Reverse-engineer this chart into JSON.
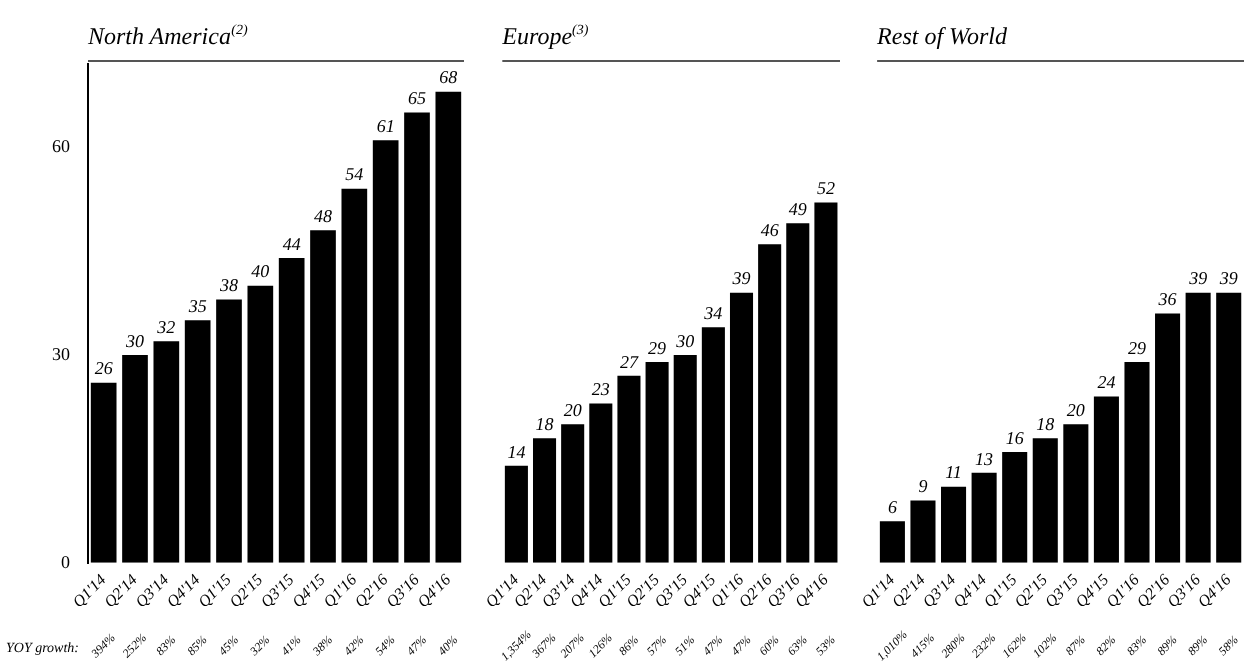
{
  "chart_data": [
    {
      "type": "bar",
      "title": "North America$^{(2)}$",
      "categories": [
        "Q1'14",
        "Q2'14",
        "Q3'14",
        "Q4'14",
        "Q1'15",
        "Q2'15",
        "Q3'15",
        "Q4'15",
        "Q1'16",
        "Q2'16",
        "Q3'16",
        "Q4'16"
      ],
      "values": [
        26,
        30,
        32,
        35,
        38,
        40,
        44,
        48,
        54,
        61,
        65,
        68
      ],
      "color": "#000000",
      "ylim": [
        0,
        72
      ],
      "yticks": [
        0,
        30,
        60
      ],
      "grid": false,
      "data_labels": true,
      "annotations": [
        "YOY growth:",
        "394%",
        "252%",
        "83%",
        "85%",
        "45%",
        "32%",
        "41%",
        "38%",
        "42%",
        "54%",
        "47%",
        "40%"
      ]
    },
    {
      "type": "bar",
      "title": "Europe$^{(3)}$",
      "categories": [
        "Q1'14",
        "Q2'14",
        "Q3'14",
        "Q4'14",
        "Q1'15",
        "Q2'15",
        "Q3'15",
        "Q4'15",
        "Q1'16",
        "Q2'16",
        "Q3'16",
        "Q4'16"
      ],
      "values": [
        14,
        18,
        20,
        23,
        27,
        29,
        30,
        34,
        39,
        46,
        49,
        52
      ],
      "color": "#000000",
      "ylim": [
        0,
        72
      ],
      "grid": false,
      "data_labels": true,
      "tick_labels": "x",
      "annotations": [
        "1,354%",
        "367%",
        "207%",
        "126%",
        "86%",
        "57%",
        "51%",
        "47%",
        "47%",
        "60%",
        "63%",
        "53%"
      ]
    },
    {
      "type": "bar",
      "title": "Rest of World",
      "categories": [
        "Q1'14",
        "Q2'14",
        "Q3'14",
        "Q4'14",
        "Q1'15",
        "Q2'15",
        "Q3'15",
        "Q4'15",
        "Q1'16",
        "Q2'16",
        "Q3'16",
        "Q4'16"
      ],
      "values": [
        6,
        9,
        11,
        13,
        16,
        18,
        20,
        24,
        29,
        36,
        39,
        39
      ],
      "color": "#000000",
      "ylim": [
        0,
        72
      ],
      "grid": false,
      "data_labels": true,
      "tick_labels": "x",
      "annotations": [
        "1,010%",
        "415%",
        "280%",
        "232%",
        "162%",
        "102%",
        "87%",
        "82%",
        "83%",
        "89%",
        "89%",
        "58%"
      ]
    }
  ]
}
